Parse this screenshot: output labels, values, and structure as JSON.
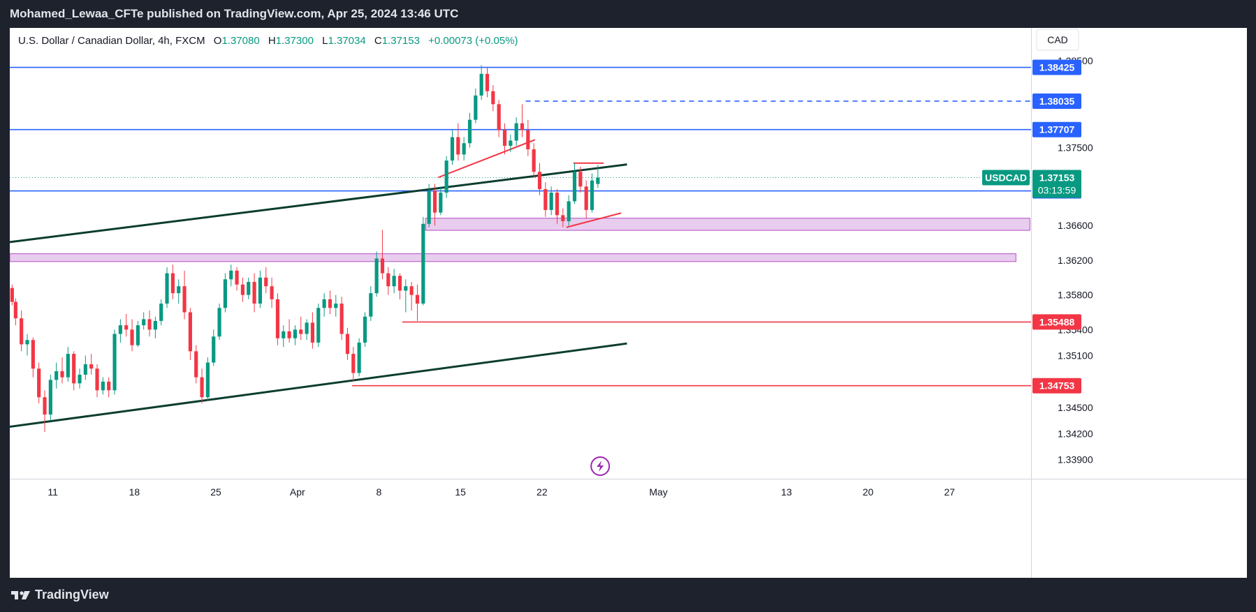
{
  "header": {
    "publisher_text": "Mohamed_Lewaa_CFTe published on TradingView.com, Apr 25, 2024 13:46 UTC"
  },
  "legend": {
    "symbol": "U.S. Dollar / Canadian Dollar, 4h, FXCM",
    "open_label": "O",
    "open": "1.37080",
    "high_label": "H",
    "high": "1.37300",
    "low_label": "L",
    "low": "1.37034",
    "close_label": "C",
    "close": "1.37153",
    "change": "+0.00073 (+0.05%)"
  },
  "footer": {
    "brand": "TradingView"
  },
  "colors": {
    "up": "#089981",
    "down": "#f23645",
    "blue": "#2962ff",
    "trend": "#0b3d2e",
    "zone_fill": "#e9cdef",
    "zone_stroke": "#b04fc0",
    "pattern": "#f23645",
    "flash": "#9c27b0"
  },
  "icons": {
    "flash": "lightning-bolt-icon",
    "logo": "tradingview-logo-icon"
  },
  "chart_data": {
    "type": "candlestick",
    "currency": "CAD",
    "symbol_tag": "USDCAD",
    "countdown": "03:13:59",
    "ylim": [
      1.3368,
      1.3888
    ],
    "y_ticks": [
      "1.38500",
      "1.37500",
      "1.36600",
      "1.36200",
      "1.35800",
      "1.35400",
      "1.35100",
      "1.34500",
      "1.34200",
      "1.33900"
    ],
    "x_ticks": [
      {
        "label": "11",
        "day": 11
      },
      {
        "label": "18",
        "day": 18
      },
      {
        "label": "25",
        "day": 25
      },
      {
        "label": "Apr",
        "day": 32
      },
      {
        "label": "8",
        "day": 39
      },
      {
        "label": "15",
        "day": 46
      },
      {
        "label": "22",
        "day": 53
      },
      {
        "label": "May",
        "day": 63
      },
      {
        "label": "13",
        "day": 74
      },
      {
        "label": "20",
        "day": 81
      },
      {
        "label": "27",
        "day": 88
      }
    ],
    "x_domain_days": [
      7.3,
      95.0
    ],
    "x_axis_note": "day index counted from Mar 1, 2024",
    "last_price": 1.37153,
    "levels": [
      {
        "price": 1.38425,
        "label": "1.38425",
        "color": "#2962ff",
        "style": "solid",
        "from_day": 7.3
      },
      {
        "price": 1.38035,
        "label": "1.38035",
        "color": "#2962ff",
        "style": "dashed",
        "from_day": 51.6
      },
      {
        "price": 1.37707,
        "label": "1.37707",
        "color": "#2962ff",
        "style": "solid",
        "from_day": 7.3
      },
      {
        "price": 1.37,
        "label": "1.37000",
        "color": "#2962ff",
        "style": "solid",
        "from_day": 7.3
      },
      {
        "price": 1.35488,
        "label": "1.35488",
        "color": "#f23645",
        "style": "solid",
        "from_day": 41.0
      },
      {
        "price": 1.34753,
        "label": "1.34753",
        "color": "#f23645",
        "style": "solid",
        "from_day": 36.7
      }
    ],
    "zones": [
      {
        "from_day": 43.0,
        "to_day": 94.9,
        "top": 1.36685,
        "bottom": 1.36545
      },
      {
        "from_day": 7.3,
        "to_day": 93.7,
        "top": 1.36275,
        "bottom": 1.36185
      }
    ],
    "trendlines": [
      {
        "from": [
          7.3,
          1.3641
        ],
        "to": [
          60.3,
          1.37305
        ],
        "color": "#0b3d2e"
      },
      {
        "from": [
          7.3,
          1.3428
        ],
        "to": [
          60.3,
          1.3524
        ],
        "color": "#0b3d2e"
      },
      {
        "from": [
          44.1,
          1.37155
        ],
        "to": [
          52.4,
          1.3759
        ],
        "color": "#f23645"
      },
      {
        "from": [
          55.1,
          1.3658
        ],
        "to": [
          59.8,
          1.36745
        ],
        "color": "#f23645"
      },
      {
        "from": [
          55.7,
          1.3732
        ],
        "to": [
          58.3,
          1.3732
        ],
        "color": "#f23645"
      }
    ],
    "series": [
      {
        "day": 7.5,
        "o": 1.3588,
        "h": 1.3592,
        "c": 1.3572,
        "l": 1.3568
      },
      {
        "day": 7.8,
        "o": 1.3572,
        "h": 1.3576,
        "c": 1.3553,
        "l": 1.3545
      },
      {
        "day": 8.3,
        "o": 1.3553,
        "h": 1.3562,
        "c": 1.3523,
        "l": 1.3515
      },
      {
        "day": 8.8,
        "o": 1.3523,
        "h": 1.3535,
        "c": 1.3528,
        "l": 1.351
      },
      {
        "day": 9.3,
        "o": 1.3528,
        "h": 1.3531,
        "c": 1.3495,
        "l": 1.3485
      },
      {
        "day": 9.8,
        "o": 1.3495,
        "h": 1.3502,
        "c": 1.3462,
        "l": 1.3455
      },
      {
        "day": 10.3,
        "o": 1.3462,
        "h": 1.347,
        "c": 1.3442,
        "l": 1.3422
      },
      {
        "day": 10.8,
        "o": 1.3442,
        "h": 1.3488,
        "c": 1.3482,
        "l": 1.3435
      },
      {
        "day": 11.3,
        "o": 1.3482,
        "h": 1.3502,
        "c": 1.3492,
        "l": 1.3472
      },
      {
        "day": 11.8,
        "o": 1.3492,
        "h": 1.3508,
        "c": 1.3485,
        "l": 1.3478
      },
      {
        "day": 12.3,
        "o": 1.3485,
        "h": 1.352,
        "c": 1.3512,
        "l": 1.348
      },
      {
        "day": 12.8,
        "o": 1.3512,
        "h": 1.3515,
        "c": 1.3478,
        "l": 1.347
      },
      {
        "day": 13.3,
        "o": 1.3478,
        "h": 1.3495,
        "c": 1.3488,
        "l": 1.3472
      },
      {
        "day": 13.8,
        "o": 1.3488,
        "h": 1.351,
        "c": 1.35,
        "l": 1.3482
      },
      {
        "day": 14.3,
        "o": 1.35,
        "h": 1.3512,
        "c": 1.3495,
        "l": 1.3488
      },
      {
        "day": 14.8,
        "o": 1.3495,
        "h": 1.35,
        "c": 1.347,
        "l": 1.3462
      },
      {
        "day": 15.3,
        "o": 1.347,
        "h": 1.3485,
        "c": 1.348,
        "l": 1.3465
      },
      {
        "day": 15.8,
        "o": 1.348,
        "h": 1.3485,
        "c": 1.347,
        "l": 1.3462
      },
      {
        "day": 16.3,
        "o": 1.347,
        "h": 1.354,
        "c": 1.3535,
        "l": 1.3465
      },
      {
        "day": 16.8,
        "o": 1.3535,
        "h": 1.3552,
        "c": 1.3545,
        "l": 1.3525
      },
      {
        "day": 17.3,
        "o": 1.3545,
        "h": 1.3558,
        "c": 1.354,
        "l": 1.3532
      },
      {
        "day": 17.8,
        "o": 1.354,
        "h": 1.3552,
        "c": 1.3522,
        "l": 1.3515
      },
      {
        "day": 18.3,
        "o": 1.3522,
        "h": 1.355,
        "c": 1.3545,
        "l": 1.352
      },
      {
        "day": 18.8,
        "o": 1.3545,
        "h": 1.356,
        "c": 1.3552,
        "l": 1.354
      },
      {
        "day": 19.3,
        "o": 1.3552,
        "h": 1.3562,
        "c": 1.354,
        "l": 1.3532
      },
      {
        "day": 19.8,
        "o": 1.354,
        "h": 1.3555,
        "c": 1.355,
        "l": 1.353
      },
      {
        "day": 20.3,
        "o": 1.355,
        "h": 1.3575,
        "c": 1.357,
        "l": 1.3545
      },
      {
        "day": 20.8,
        "o": 1.357,
        "h": 1.3612,
        "c": 1.3605,
        "l": 1.3565
      },
      {
        "day": 21.3,
        "o": 1.3605,
        "h": 1.3615,
        "c": 1.3582,
        "l": 1.3575
      },
      {
        "day": 21.8,
        "o": 1.3582,
        "h": 1.3598,
        "c": 1.359,
        "l": 1.357
      },
      {
        "day": 22.3,
        "o": 1.359,
        "h": 1.3608,
        "c": 1.356,
        "l": 1.3552
      },
      {
        "day": 22.8,
        "o": 1.356,
        "h": 1.3565,
        "c": 1.3515,
        "l": 1.3505
      },
      {
        "day": 23.3,
        "o": 1.3515,
        "h": 1.3522,
        "c": 1.3485,
        "l": 1.3478
      },
      {
        "day": 23.8,
        "o": 1.3485,
        "h": 1.3495,
        "c": 1.3462,
        "l": 1.3455
      },
      {
        "day": 24.3,
        "o": 1.3462,
        "h": 1.3508,
        "c": 1.3502,
        "l": 1.3458
      },
      {
        "day": 24.8,
        "o": 1.3502,
        "h": 1.354,
        "c": 1.3532,
        "l": 1.3498
      },
      {
        "day": 25.3,
        "o": 1.3532,
        "h": 1.357,
        "c": 1.3565,
        "l": 1.3528
      },
      {
        "day": 25.8,
        "o": 1.3565,
        "h": 1.3605,
        "c": 1.3598,
        "l": 1.356
      },
      {
        "day": 26.3,
        "o": 1.3598,
        "h": 1.3615,
        "c": 1.3608,
        "l": 1.359
      },
      {
        "day": 26.8,
        "o": 1.3608,
        "h": 1.3612,
        "c": 1.3592,
        "l": 1.3585
      },
      {
        "day": 27.3,
        "o": 1.3592,
        "h": 1.36,
        "c": 1.358,
        "l": 1.3572
      },
      {
        "day": 27.8,
        "o": 1.358,
        "h": 1.36,
        "c": 1.3595,
        "l": 1.3575
      },
      {
        "day": 28.3,
        "o": 1.3595,
        "h": 1.3605,
        "c": 1.357,
        "l": 1.356
      },
      {
        "day": 28.8,
        "o": 1.357,
        "h": 1.3608,
        "c": 1.36,
        "l": 1.3565
      },
      {
        "day": 29.3,
        "o": 1.36,
        "h": 1.3612,
        "c": 1.359,
        "l": 1.3582
      },
      {
        "day": 29.8,
        "o": 1.359,
        "h": 1.36,
        "c": 1.3575,
        "l": 1.3565
      },
      {
        "day": 30.3,
        "o": 1.3575,
        "h": 1.3582,
        "c": 1.353,
        "l": 1.3522
      },
      {
        "day": 30.8,
        "o": 1.353,
        "h": 1.3545,
        "c": 1.3538,
        "l": 1.352
      },
      {
        "day": 31.3,
        "o": 1.3538,
        "h": 1.3552,
        "c": 1.353,
        "l": 1.3525
      },
      {
        "day": 31.8,
        "o": 1.353,
        "h": 1.3545,
        "c": 1.354,
        "l": 1.3522
      },
      {
        "day": 32.3,
        "o": 1.354,
        "h": 1.3555,
        "c": 1.3535,
        "l": 1.3528
      },
      {
        "day": 32.8,
        "o": 1.3535,
        "h": 1.3552,
        "c": 1.3548,
        "l": 1.3528
      },
      {
        "day": 33.3,
        "o": 1.3548,
        "h": 1.356,
        "c": 1.3525,
        "l": 1.3518
      },
      {
        "day": 33.8,
        "o": 1.3525,
        "h": 1.357,
        "c": 1.3565,
        "l": 1.352
      },
      {
        "day": 34.3,
        "o": 1.3565,
        "h": 1.3582,
        "c": 1.3575,
        "l": 1.3555
      },
      {
        "day": 34.8,
        "o": 1.3575,
        "h": 1.3585,
        "c": 1.3565,
        "l": 1.3558
      },
      {
        "day": 35.3,
        "o": 1.3565,
        "h": 1.358,
        "c": 1.357,
        "l": 1.3555
      },
      {
        "day": 35.8,
        "o": 1.357,
        "h": 1.3578,
        "c": 1.3535,
        "l": 1.3528
      },
      {
        "day": 36.3,
        "o": 1.3535,
        "h": 1.3542,
        "c": 1.3512,
        "l": 1.3505
      },
      {
        "day": 36.8,
        "o": 1.3512,
        "h": 1.352,
        "c": 1.349,
        "l": 1.348
      },
      {
        "day": 37.3,
        "o": 1.349,
        "h": 1.353,
        "c": 1.3525,
        "l": 1.3486
      },
      {
        "day": 37.8,
        "o": 1.3525,
        "h": 1.356,
        "c": 1.3555,
        "l": 1.352
      },
      {
        "day": 38.3,
        "o": 1.3555,
        "h": 1.359,
        "c": 1.3582,
        "l": 1.355
      },
      {
        "day": 38.8,
        "o": 1.3582,
        "h": 1.363,
        "c": 1.3622,
        "l": 1.3578
      },
      {
        "day": 39.3,
        "o": 1.3622,
        "h": 1.3655,
        "c": 1.3605,
        "l": 1.3598
      },
      {
        "day": 39.8,
        "o": 1.3605,
        "h": 1.3612,
        "c": 1.359,
        "l": 1.358
      },
      {
        "day": 40.3,
        "o": 1.359,
        "h": 1.361,
        "c": 1.3602,
        "l": 1.3582
      },
      {
        "day": 40.8,
        "o": 1.3602,
        "h": 1.3605,
        "c": 1.3585,
        "l": 1.3575
      },
      {
        "day": 41.3,
        "o": 1.3585,
        "h": 1.3598,
        "c": 1.359,
        "l": 1.356
      },
      {
        "day": 41.8,
        "o": 1.359,
        "h": 1.3595,
        "c": 1.358,
        "l": 1.3562
      },
      {
        "day": 42.3,
        "o": 1.358,
        "h": 1.3592,
        "c": 1.357,
        "l": 1.355
      },
      {
        "day": 42.8,
        "o": 1.357,
        "h": 1.367,
        "c": 1.3662,
        "l": 1.3568
      },
      {
        "day": 43.3,
        "o": 1.3662,
        "h": 1.3708,
        "c": 1.37,
        "l": 1.3658
      },
      {
        "day": 43.8,
        "o": 1.37,
        "h": 1.3708,
        "c": 1.3675,
        "l": 1.366
      },
      {
        "day": 44.3,
        "o": 1.3675,
        "h": 1.3705,
        "c": 1.3698,
        "l": 1.3672
      },
      {
        "day": 44.8,
        "o": 1.3698,
        "h": 1.374,
        "c": 1.3735,
        "l": 1.3692
      },
      {
        "day": 45.3,
        "o": 1.3735,
        "h": 1.377,
        "c": 1.3762,
        "l": 1.373
      },
      {
        "day": 45.8,
        "o": 1.3762,
        "h": 1.3778,
        "c": 1.3742,
        "l": 1.3735
      },
      {
        "day": 46.3,
        "o": 1.3742,
        "h": 1.3762,
        "c": 1.3755,
        "l": 1.3735
      },
      {
        "day": 46.8,
        "o": 1.3755,
        "h": 1.379,
        "c": 1.3782,
        "l": 1.375
      },
      {
        "day": 47.3,
        "o": 1.3782,
        "h": 1.3818,
        "c": 1.381,
        "l": 1.3778
      },
      {
        "day": 47.8,
        "o": 1.381,
        "h": 1.3845,
        "c": 1.3835,
        "l": 1.3805
      },
      {
        "day": 48.3,
        "o": 1.3835,
        "h": 1.3842,
        "c": 1.3815,
        "l": 1.3808
      },
      {
        "day": 48.8,
        "o": 1.3815,
        "h": 1.3822,
        "c": 1.38,
        "l": 1.3792
      },
      {
        "day": 49.3,
        "o": 1.38,
        "h": 1.3805,
        "c": 1.377,
        "l": 1.3762
      },
      {
        "day": 49.8,
        "o": 1.377,
        "h": 1.3778,
        "c": 1.3752,
        "l": 1.3742
      },
      {
        "day": 50.3,
        "o": 1.3752,
        "h": 1.3765,
        "c": 1.3758,
        "l": 1.3745
      },
      {
        "day": 50.8,
        "o": 1.3758,
        "h": 1.3785,
        "c": 1.3778,
        "l": 1.3752
      },
      {
        "day": 51.3,
        "o": 1.3778,
        "h": 1.38,
        "c": 1.377,
        "l": 1.3762
      },
      {
        "day": 51.8,
        "o": 1.377,
        "h": 1.3782,
        "c": 1.3748,
        "l": 1.374
      },
      {
        "day": 52.3,
        "o": 1.3748,
        "h": 1.3755,
        "c": 1.3722,
        "l": 1.3715
      },
      {
        "day": 52.8,
        "o": 1.3722,
        "h": 1.3732,
        "c": 1.3702,
        "l": 1.3695
      },
      {
        "day": 53.3,
        "o": 1.3702,
        "h": 1.371,
        "c": 1.3678,
        "l": 1.367
      },
      {
        "day": 53.8,
        "o": 1.3678,
        "h": 1.3705,
        "c": 1.3698,
        "l": 1.3672
      },
      {
        "day": 54.3,
        "o": 1.3698,
        "h": 1.3702,
        "c": 1.3672,
        "l": 1.3662
      },
      {
        "day": 54.8,
        "o": 1.3672,
        "h": 1.368,
        "c": 1.3665,
        "l": 1.3658
      },
      {
        "day": 55.3,
        "o": 1.3665,
        "h": 1.3695,
        "c": 1.3688,
        "l": 1.366
      },
      {
        "day": 55.8,
        "o": 1.3688,
        "h": 1.3732,
        "c": 1.3722,
        "l": 1.3685
      },
      {
        "day": 56.3,
        "o": 1.3722,
        "h": 1.3728,
        "c": 1.3705,
        "l": 1.3698
      },
      {
        "day": 56.8,
        "o": 1.3705,
        "h": 1.3712,
        "c": 1.3678,
        "l": 1.3668
      },
      {
        "day": 57.3,
        "o": 1.3678,
        "h": 1.372,
        "c": 1.3712,
        "l": 1.3675
      },
      {
        "day": 57.8,
        "o": 1.3708,
        "h": 1.373,
        "c": 1.37153,
        "l": 1.37034
      }
    ]
  }
}
